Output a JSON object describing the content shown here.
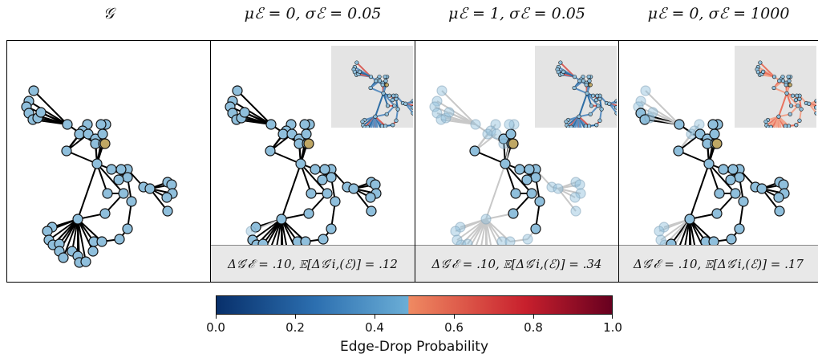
{
  "panels": [
    {
      "title": "𝒢",
      "stat": "",
      "inset": false,
      "mode": "full"
    },
    {
      "title": "μℰ = 0, σℰ = 0.05",
      "stat": "Δ𝒢′ℰ = .10, 𝔼[Δ𝒢′i,(ℰ)] = .12",
      "inset": true,
      "mode": "one-faded"
    },
    {
      "title": "μℰ = 1, σℰ = 0.05",
      "stat": "Δ𝒢′ℰ = .10, 𝔼[Δ𝒢′i,(ℰ)] = .34",
      "inset": true,
      "mode": "many-faded"
    },
    {
      "title": "μℰ = 0, σℰ = 1000",
      "stat": "Δ𝒢′ℰ = .10, 𝔼[Δ𝒢′i,(ℰ)] = .17",
      "inset": true,
      "mode": "some-faded"
    }
  ],
  "colorbar": {
    "label": "Edge-Drop Probability",
    "ticks": [
      "0.0",
      "0.2",
      "0.4",
      "0.6",
      "0.8",
      "1.0"
    ],
    "colors": {
      "low": "#08306b",
      "mid_low": "#6baed6",
      "mid_high": "#ef8a62",
      "high": "#67001f"
    }
  },
  "node_colors": {
    "default": "#8fbfdc",
    "target": "#bfa764",
    "stroke": "#111111"
  }
}
